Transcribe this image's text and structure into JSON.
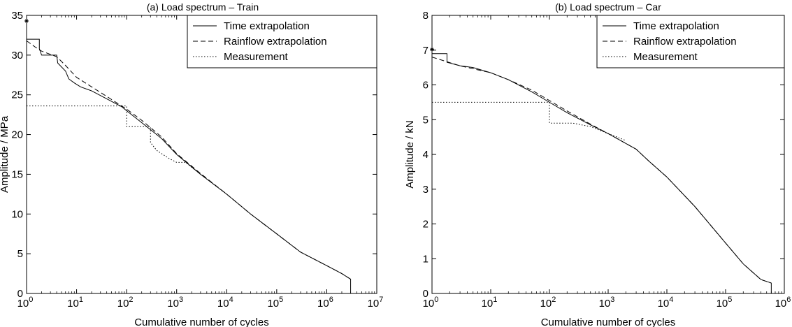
{
  "chart_data": [
    {
      "type": "line",
      "title": "(a) Load spectrum – Train",
      "xlabel": "Cumulative number of cycles",
      "ylabel": "Amplitude / MPa",
      "xscale": "log",
      "xlim": [
        1,
        10000000
      ],
      "ylim": [
        0,
        35
      ],
      "x_ticks": [
        {
          "value": 1,
          "base": "10",
          "exp": "0"
        },
        {
          "value": 10,
          "base": "10",
          "exp": "1"
        },
        {
          "value": 100,
          "base": "10",
          "exp": "2"
        },
        {
          "value": 1000,
          "base": "10",
          "exp": "3"
        },
        {
          "value": 10000,
          "base": "10",
          "exp": "4"
        },
        {
          "value": 100000,
          "base": "10",
          "exp": "5"
        },
        {
          "value": 1000000,
          "base": "10",
          "exp": "6"
        },
        {
          "value": 10000000,
          "base": "10",
          "exp": "7"
        }
      ],
      "y_ticks": [
        0,
        5,
        10,
        15,
        20,
        25,
        30,
        35
      ],
      "legend": {
        "position": "top-right"
      },
      "series": [
        {
          "name": "Time extrapolation",
          "style": "solid",
          "points": [
            [
              1,
              32
            ],
            [
              1.1,
              32
            ],
            [
              1.8,
              32
            ],
            [
              1.8,
              30.8
            ],
            [
              2,
              30
            ],
            [
              4,
              30
            ],
            [
              4.2,
              29
            ],
            [
              6,
              28
            ],
            [
              7,
              27
            ],
            [
              9,
              26.5
            ],
            [
              12,
              26
            ],
            [
              20,
              25.5
            ],
            [
              40,
              24.5
            ],
            [
              80,
              23.5
            ],
            [
              100,
              23
            ],
            [
              200,
              21.5
            ],
            [
              500,
              19.5
            ],
            [
              1000,
              17.5
            ],
            [
              3000,
              15
            ],
            [
              10000,
              12.5
            ],
            [
              30000,
              10
            ],
            [
              100000,
              7.5
            ],
            [
              300000,
              5.2
            ],
            [
              1000000,
              3.5
            ],
            [
              2000000,
              2.5
            ],
            [
              3000000,
              1.8
            ],
            [
              3000000,
              0
            ]
          ]
        },
        {
          "name": "Rainflow extrapolation",
          "style": "dashed",
          "points": [
            [
              1,
              31.8
            ],
            [
              1.5,
              31
            ],
            [
              2,
              30.5
            ],
            [
              4,
              29.8
            ],
            [
              6,
              28.7
            ],
            [
              10,
              27.2
            ],
            [
              20,
              26
            ],
            [
              40,
              24.8
            ],
            [
              100,
              23.2
            ],
            [
              200,
              21.8
            ],
            [
              500,
              19.7
            ],
            [
              1000,
              17.6
            ],
            [
              3000,
              15.1
            ],
            [
              10000,
              12.5
            ],
            [
              30000,
              10
            ],
            [
              100000,
              7.5
            ],
            [
              300000,
              5.2
            ],
            [
              1000000,
              3.5
            ],
            [
              2000000,
              2.5
            ],
            [
              3000000,
              1.8
            ]
          ]
        },
        {
          "name": "Measurement",
          "style": "dotted",
          "points": [
            [
              1,
              23.6
            ],
            [
              100,
              23.6
            ],
            [
              100,
              21
            ],
            [
              300,
              21
            ],
            [
              300,
              19
            ],
            [
              400,
              18
            ],
            [
              700,
              17
            ],
            [
              1000,
              16.5
            ],
            [
              1500,
              16.5
            ],
            [
              3000,
              15
            ],
            [
              10000,
              12.5
            ]
          ]
        }
      ],
      "markers": [
        [
          1,
          34.3
        ]
      ]
    },
    {
      "type": "line",
      "title": "(b) Load spectrum – Car",
      "xlabel": "Cumulative number of cycles",
      "ylabel": "Amplitude / kN",
      "xscale": "log",
      "xlim": [
        1,
        1000000
      ],
      "ylim": [
        0,
        8
      ],
      "x_ticks": [
        {
          "value": 1,
          "base": "10",
          "exp": "0"
        },
        {
          "value": 10,
          "base": "10",
          "exp": "1"
        },
        {
          "value": 100,
          "base": "10",
          "exp": "2"
        },
        {
          "value": 1000,
          "base": "10",
          "exp": "3"
        },
        {
          "value": 10000,
          "base": "10",
          "exp": "4"
        },
        {
          "value": 100000,
          "base": "10",
          "exp": "5"
        },
        {
          "value": 1000000,
          "base": "10",
          "exp": "6"
        }
      ],
      "y_ticks": [
        0,
        1,
        2,
        3,
        4,
        5,
        6,
        7,
        8
      ],
      "legend": {
        "position": "top-right"
      },
      "series": [
        {
          "name": "Time extrapolation",
          "style": "solid",
          "points": [
            [
              1,
              6.9
            ],
            [
              1.8,
              6.9
            ],
            [
              1.8,
              6.65
            ],
            [
              3,
              6.55
            ],
            [
              5,
              6.5
            ],
            [
              10,
              6.35
            ],
            [
              20,
              6.15
            ],
            [
              50,
              5.8
            ],
            [
              100,
              5.5
            ],
            [
              200,
              5.2
            ],
            [
              500,
              4.85
            ],
            [
              1000,
              4.6
            ],
            [
              3000,
              4.15
            ],
            [
              5000,
              3.8
            ],
            [
              10000,
              3.35
            ],
            [
              30000,
              2.5
            ],
            [
              100000,
              1.45
            ],
            [
              200000,
              0.85
            ],
            [
              400000,
              0.4
            ],
            [
              600000,
              0.3
            ],
            [
              600000,
              0
            ]
          ]
        },
        {
          "name": "Rainflow extrapolation",
          "style": "dashed",
          "points": [
            [
              1,
              6.8
            ],
            [
              3,
              6.55
            ],
            [
              10,
              6.35
            ],
            [
              20,
              6.15
            ],
            [
              50,
              5.85
            ],
            [
              100,
              5.55
            ],
            [
              200,
              5.25
            ],
            [
              500,
              4.87
            ],
            [
              1000,
              4.6
            ],
            [
              3000,
              4.15
            ],
            [
              5000,
              3.8
            ],
            [
              10000,
              3.35
            ],
            [
              30000,
              2.5
            ],
            [
              100000,
              1.45
            ],
            [
              200000,
              0.85
            ],
            [
              400000,
              0.4
            ],
            [
              600000,
              0.3
            ]
          ]
        },
        {
          "name": "Measurement",
          "style": "dotted",
          "points": [
            [
              1,
              5.5
            ],
            [
              100,
              5.5
            ],
            [
              100,
              4.9
            ],
            [
              250,
              4.9
            ],
            [
              500,
              4.8
            ],
            [
              1000,
              4.6
            ],
            [
              2000,
              4.4
            ]
          ]
        }
      ],
      "markers": [
        [
          1,
          7.02
        ]
      ]
    }
  ]
}
